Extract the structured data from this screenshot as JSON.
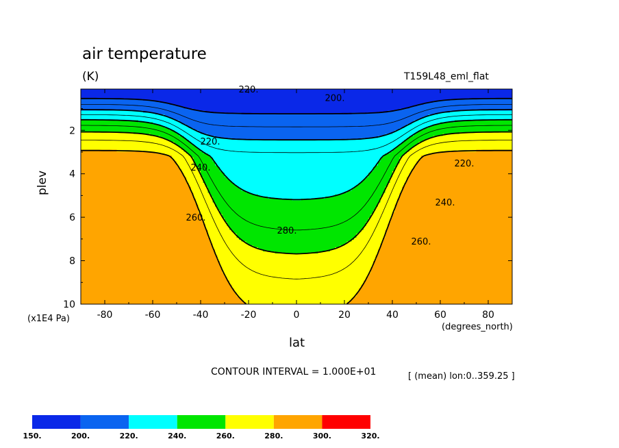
{
  "chart_data": {
    "type": "contour",
    "title": "air temperature",
    "units": "(K)",
    "experiment": "T159L48_eml_flat",
    "xlabel": "lat",
    "x_units": "(degrees_north)",
    "ylabel": "plev",
    "y_units": "(x1E4 Pa)",
    "xlim": [
      -90,
      90
    ],
    "ylim": [
      0.1,
      10
    ],
    "y_inverted": true,
    "x_ticks": [
      -80,
      -60,
      -40,
      -20,
      0,
      20,
      40,
      60,
      80
    ],
    "x_tick_labels": [
      "-80",
      "-60",
      "-40",
      "-20",
      "0",
      "20",
      "40",
      "60",
      "80"
    ],
    "y_ticks": [
      2,
      4,
      6,
      8,
      10
    ],
    "y_tick_labels": [
      "2",
      "4",
      "6",
      "8",
      "10"
    ],
    "contour_interval_text": "CONTOUR INTERVAL = 1.000E+01",
    "averaging_text": "[ (mean) lon:0..359.25 ]",
    "color_levels": [
      150,
      200,
      220,
      240,
      260,
      280,
      300,
      320
    ],
    "color_level_labels": [
      "150.",
      "200.",
      "220.",
      "240.",
      "260.",
      "280.",
      "300.",
      "320."
    ],
    "colors": [
      "#0a28e8",
      "#0a64f0",
      "#00ffff",
      "#00e600",
      "#ffff00",
      "#ffa500",
      "#ff0000"
    ],
    "contour_labels": [
      {
        "text": "220.",
        "lat": -20,
        "plev": 0.1
      },
      {
        "text": "200.",
        "lat": 16,
        "plev": 0.5
      },
      {
        "text": "220.",
        "lat": -36,
        "plev": 2.5
      },
      {
        "text": "220.",
        "lat": 70,
        "plev": 3.5
      },
      {
        "text": "240.",
        "lat": -40,
        "plev": 3.7
      },
      {
        "text": "240.",
        "lat": 62,
        "plev": 5.3
      },
      {
        "text": "260.",
        "lat": -42,
        "plev": 6.0
      },
      {
        "text": "260.",
        "lat": 52,
        "plev": 7.1
      },
      {
        "text": "280.",
        "lat": -4,
        "plev": 6.6
      }
    ]
  }
}
